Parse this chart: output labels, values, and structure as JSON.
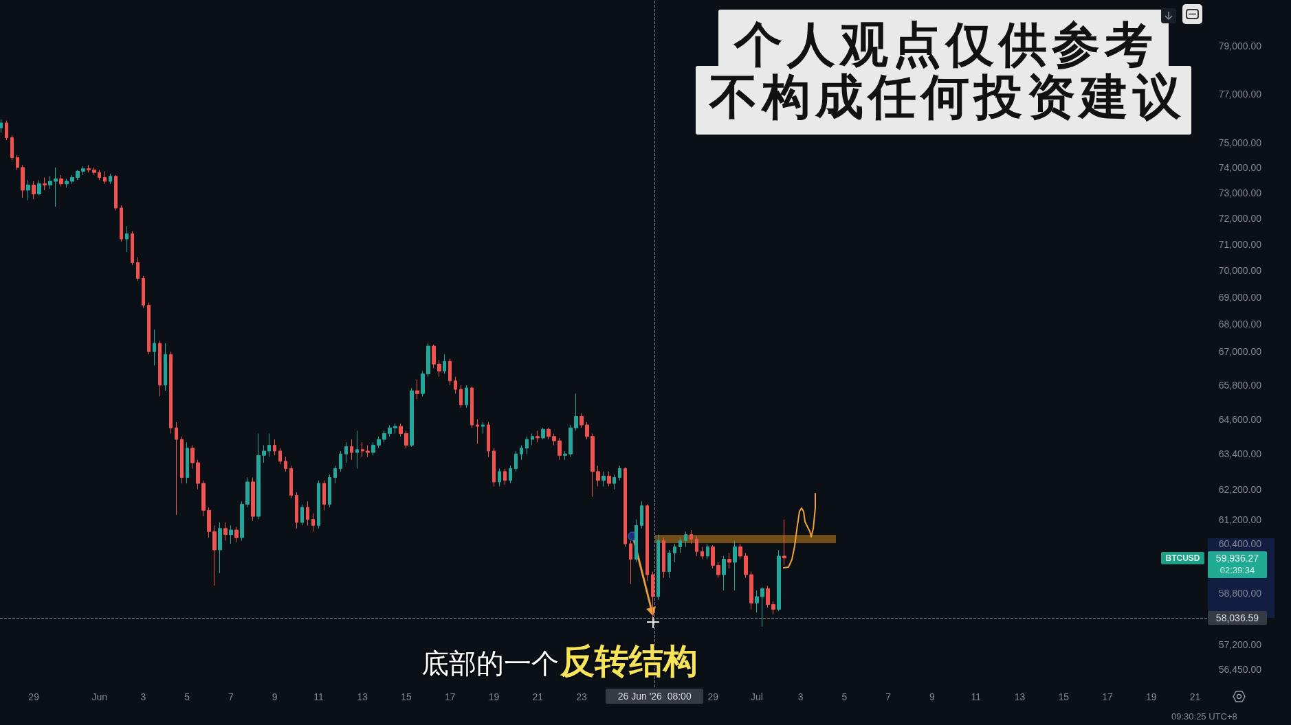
{
  "chart_data": {
    "type": "candlestick",
    "x": [
      "2026-05-27T12:00",
      "2026-05-27T18:00",
      "2026-05-28T00:00",
      "2026-05-28T06:00",
      "2026-05-28T12:00",
      "2026-05-28T18:00",
      "2026-05-29T00:00",
      "2026-05-29T06:00",
      "2026-05-29T12:00",
      "2026-05-29T18:00",
      "2026-05-30T00:00",
      "2026-05-30T06:00",
      "2026-05-30T12:00",
      "2026-05-30T18:00",
      "2026-05-31T00:00",
      "2026-05-31T06:00",
      "2026-05-31T12:00",
      "2026-05-31T18:00",
      "2026-06-01T00:00",
      "2026-06-01T06:00",
      "2026-06-01T12:00",
      "2026-06-01T18:00",
      "2026-06-02T00:00",
      "2026-06-02T06:00",
      "2026-06-02T12:00",
      "2026-06-02T18:00",
      "2026-06-03T00:00",
      "2026-06-03T06:00",
      "2026-06-03T12:00",
      "2026-06-03T18:00",
      "2026-06-04T00:00",
      "2026-06-04T06:00",
      "2026-06-04T12:00",
      "2026-06-04T18:00",
      "2026-06-05T00:00",
      "2026-06-05T06:00",
      "2026-06-05T12:00",
      "2026-06-05T18:00",
      "2026-06-06T00:00",
      "2026-06-06T06:00",
      "2026-06-06T12:00",
      "2026-06-06T18:00",
      "2026-06-07T00:00",
      "2026-06-07T06:00",
      "2026-06-07T12:00",
      "2026-06-07T18:00",
      "2026-06-08T00:00",
      "2026-06-08T06:00",
      "2026-06-08T12:00",
      "2026-06-08T18:00",
      "2026-06-09T00:00",
      "2026-06-09T06:00",
      "2026-06-09T12:00",
      "2026-06-09T18:00",
      "2026-06-10T00:00",
      "2026-06-10T06:00",
      "2026-06-10T12:00",
      "2026-06-10T18:00",
      "2026-06-11T00:00",
      "2026-06-11T06:00",
      "2026-06-11T12:00",
      "2026-06-11T18:00",
      "2026-06-12T00:00",
      "2026-06-12T06:00",
      "2026-06-12T12:00",
      "2026-06-12T18:00",
      "2026-06-13T00:00",
      "2026-06-13T06:00",
      "2026-06-13T12:00",
      "2026-06-13T18:00",
      "2026-06-14T00:00",
      "2026-06-14T06:00",
      "2026-06-14T12:00",
      "2026-06-14T18:00",
      "2026-06-15T00:00",
      "2026-06-15T06:00",
      "2026-06-15T12:00",
      "2026-06-15T18:00",
      "2026-06-16T00:00",
      "2026-06-16T06:00",
      "2026-06-16T12:00",
      "2026-06-16T18:00",
      "2026-06-17T00:00",
      "2026-06-17T06:00",
      "2026-06-17T12:00",
      "2026-06-17T18:00",
      "2026-06-18T00:00",
      "2026-06-18T06:00",
      "2026-06-18T12:00",
      "2026-06-18T18:00",
      "2026-06-19T00:00",
      "2026-06-19T06:00",
      "2026-06-19T12:00",
      "2026-06-19T18:00",
      "2026-06-20T00:00",
      "2026-06-20T06:00",
      "2026-06-20T12:00",
      "2026-06-20T18:00",
      "2026-06-21T00:00",
      "2026-06-21T06:00",
      "2026-06-21T12:00",
      "2026-06-21T18:00",
      "2026-06-22T00:00",
      "2026-06-22T06:00",
      "2026-06-22T12:00",
      "2026-06-22T18:00",
      "2026-06-23T00:00",
      "2026-06-23T06:00",
      "2026-06-23T12:00",
      "2026-06-23T18:00",
      "2026-06-24T00:00",
      "2026-06-24T06:00",
      "2026-06-24T12:00",
      "2026-06-24T18:00",
      "2026-06-25T00:00",
      "2026-06-25T06:00",
      "2026-06-25T12:00",
      "2026-06-25T18:00",
      "2026-06-26T00:00",
      "2026-06-26T06:00",
      "2026-06-26T12:00",
      "2026-06-26T18:00",
      "2026-06-27T00:00",
      "2026-06-27T06:00",
      "2026-06-27T12:00",
      "2026-06-27T18:00",
      "2026-06-28T00:00",
      "2026-06-28T06:00",
      "2026-06-28T12:00",
      "2026-06-28T18:00",
      "2026-06-29T00:00",
      "2026-06-29T06:00",
      "2026-06-29T12:00",
      "2026-06-29T18:00",
      "2026-06-30T00:00",
      "2026-06-30T06:00",
      "2026-06-30T12:00",
      "2026-06-30T18:00",
      "2026-07-01T00:00",
      "2026-07-01T06:00",
      "2026-07-01T12:00",
      "2026-07-01T18:00",
      "2026-07-02T00:00",
      "2026-07-02T06:00"
    ],
    "ohlc": [
      [
        75600,
        75950,
        75400,
        75800
      ],
      [
        75800,
        75900,
        75100,
        75200
      ],
      [
        75200,
        75300,
        74300,
        74400
      ],
      [
        74400,
        74500,
        73900,
        74000
      ],
      [
        74000,
        74100,
        72800,
        73100
      ],
      [
        73100,
        73500,
        72700,
        73300
      ],
      [
        73300,
        73450,
        72750,
        72950
      ],
      [
        72950,
        73500,
        72900,
        73350
      ],
      [
        73350,
        73600,
        73100,
        73300
      ],
      [
        73300,
        73650,
        73150,
        73450
      ],
      [
        73450,
        74000,
        72450,
        73550
      ],
      [
        73550,
        73700,
        73250,
        73350
      ],
      [
        73350,
        73550,
        73200,
        73450
      ],
      [
        73450,
        73700,
        73350,
        73600
      ],
      [
        73600,
        73900,
        73500,
        73850
      ],
      [
        73850,
        74050,
        73700,
        73950
      ],
      [
        73950,
        74100,
        73800,
        73900
      ],
      [
        73900,
        74000,
        73700,
        73800
      ],
      [
        73800,
        73900,
        73500,
        73600
      ],
      [
        73600,
        73850,
        73350,
        73450
      ],
      [
        73450,
        73750,
        73350,
        73650
      ],
      [
        73650,
        73700,
        72300,
        72400
      ],
      [
        72400,
        72500,
        71100,
        71200
      ],
      [
        71200,
        71700,
        70700,
        71400
      ],
      [
        71400,
        71500,
        70200,
        70300
      ],
      [
        70300,
        70500,
        69600,
        69700
      ],
      [
        69700,
        69800,
        68600,
        68700
      ],
      [
        68700,
        68800,
        66900,
        67000
      ],
      [
        67000,
        67800,
        66500,
        67300
      ],
      [
        67300,
        67400,
        65400,
        65800
      ],
      [
        65800,
        67300,
        65600,
        66900
      ],
      [
        66900,
        67000,
        64100,
        64300
      ],
      [
        64300,
        64500,
        61350,
        63900
      ],
      [
        63900,
        64000,
        62400,
        62600
      ],
      [
        62600,
        63800,
        62400,
        63600
      ],
      [
        63600,
        63700,
        62900,
        63100
      ],
      [
        63100,
        63200,
        62200,
        62400
      ],
      [
        62400,
        62500,
        61300,
        61500
      ],
      [
        61500,
        61600,
        60600,
        60800
      ],
      [
        60800,
        61000,
        59050,
        60200
      ],
      [
        60200,
        61100,
        59450,
        60900
      ],
      [
        60900,
        61100,
        60500,
        60700
      ],
      [
        60700,
        61000,
        60400,
        60850
      ],
      [
        60850,
        60950,
        60450,
        60600
      ],
      [
        60600,
        61800,
        60500,
        61700
      ],
      [
        61700,
        62600,
        61600,
        62450
      ],
      [
        62450,
        62600,
        61150,
        61300
      ],
      [
        61300,
        64100,
        61200,
        63350
      ],
      [
        63350,
        63700,
        63100,
        63500
      ],
      [
        63500,
        64100,
        63300,
        63700
      ],
      [
        63700,
        63900,
        63350,
        63500
      ],
      [
        63500,
        63600,
        63050,
        63150
      ],
      [
        63150,
        63300,
        62800,
        62900
      ],
      [
        62900,
        63000,
        61900,
        62000
      ],
      [
        62000,
        62100,
        60900,
        61100
      ],
      [
        61100,
        61700,
        61000,
        61600
      ],
      [
        61600,
        61800,
        61000,
        61200
      ],
      [
        61200,
        61400,
        60800,
        61000
      ],
      [
        61000,
        62500,
        60900,
        62400
      ],
      [
        62400,
        62500,
        61500,
        61700
      ],
      [
        61700,
        62700,
        61600,
        62600
      ],
      [
        62600,
        63000,
        62400,
        62900
      ],
      [
        62900,
        63500,
        62800,
        63400
      ],
      [
        63400,
        63800,
        63100,
        63650
      ],
      [
        63650,
        63900,
        63200,
        63450
      ],
      [
        63450,
        64200,
        62900,
        63550
      ],
      [
        63550,
        63800,
        63300,
        63500
      ],
      [
        63500,
        63700,
        63300,
        63450
      ],
      [
        63450,
        63800,
        63350,
        63700
      ],
      [
        63700,
        64000,
        63600,
        63900
      ],
      [
        63900,
        64200,
        63800,
        64100
      ],
      [
        64100,
        64400,
        64000,
        64300
      ],
      [
        64300,
        64450,
        64100,
        64350
      ],
      [
        64350,
        64450,
        64000,
        64100
      ],
      [
        64100,
        64200,
        63600,
        63700
      ],
      [
        63700,
        65700,
        63650,
        65600
      ],
      [
        65600,
        66000,
        65300,
        65500
      ],
      [
        65500,
        66300,
        65400,
        66200
      ],
      [
        66200,
        67300,
        66100,
        67200
      ],
      [
        67200,
        67250,
        66400,
        66550
      ],
      [
        66550,
        66700,
        66100,
        66300
      ],
      [
        66300,
        66900,
        66200,
        66650
      ],
      [
        66650,
        66750,
        65800,
        65950
      ],
      [
        65950,
        66100,
        65500,
        65650
      ],
      [
        65650,
        65800,
        65000,
        65100
      ],
      [
        65100,
        65800,
        65000,
        65700
      ],
      [
        65700,
        65750,
        64300,
        64400
      ],
      [
        64400,
        64600,
        63750,
        64350
      ],
      [
        64350,
        64500,
        64100,
        64400
      ],
      [
        64400,
        64500,
        63300,
        63500
      ],
      [
        63500,
        63600,
        62300,
        62450
      ],
      [
        62450,
        62900,
        62300,
        62800
      ],
      [
        62800,
        62900,
        62350,
        62500
      ],
      [
        62500,
        63000,
        62400,
        62900
      ],
      [
        62900,
        63500,
        62800,
        63400
      ],
      [
        63400,
        63700,
        63200,
        63600
      ],
      [
        63600,
        64000,
        63400,
        63900
      ],
      [
        63900,
        64100,
        63700,
        64000
      ],
      [
        64000,
        64200,
        63800,
        63950
      ],
      [
        63950,
        64300,
        63900,
        64250
      ],
      [
        64250,
        64300,
        63900,
        64000
      ],
      [
        64000,
        64100,
        63700,
        63850
      ],
      [
        63850,
        63950,
        63200,
        63350
      ],
      [
        63350,
        63500,
        63200,
        63400
      ],
      [
        63400,
        64400,
        63300,
        64300
      ],
      [
        64300,
        65500,
        64200,
        64700
      ],
      [
        64700,
        64800,
        64300,
        64400
      ],
      [
        64400,
        64500,
        63900,
        64000
      ],
      [
        64000,
        64100,
        61950,
        62800
      ],
      [
        62800,
        63000,
        62300,
        62500
      ],
      [
        62500,
        62800,
        62300,
        62650
      ],
      [
        62650,
        62800,
        62300,
        62400
      ],
      [
        62400,
        62700,
        62200,
        62600
      ],
      [
        62600,
        63000,
        62500,
        62900
      ],
      [
        62900,
        62950,
        60300,
        60400
      ],
      [
        60400,
        60500,
        59100,
        59900
      ],
      [
        59900,
        61200,
        59800,
        61000
      ],
      [
        61000,
        61800,
        60900,
        61650
      ],
      [
        61650,
        61700,
        59200,
        59400
      ],
      [
        59400,
        59500,
        58040,
        58700
      ],
      [
        58700,
        60700,
        58600,
        60500
      ],
      [
        60500,
        60600,
        59300,
        59500
      ],
      [
        59500,
        60200,
        59300,
        60100
      ],
      [
        60100,
        60400,
        59800,
        60300
      ],
      [
        60300,
        60600,
        60100,
        60500
      ],
      [
        60500,
        60800,
        60300,
        60700
      ],
      [
        60700,
        60850,
        60400,
        60550
      ],
      [
        60550,
        60650,
        60000,
        60150
      ],
      [
        60150,
        60300,
        59900,
        60000
      ],
      [
        60000,
        60400,
        59900,
        60300
      ],
      [
        60300,
        60350,
        59600,
        59700
      ],
      [
        59700,
        59800,
        59300,
        59400
      ],
      [
        59400,
        60000,
        58900,
        59900
      ],
      [
        59900,
        60100,
        59600,
        59800
      ],
      [
        59800,
        60500,
        58900,
        60300
      ],
      [
        60300,
        60400,
        59900,
        60000
      ],
      [
        60000,
        60100,
        59300,
        59400
      ],
      [
        59400,
        59500,
        58300,
        58500
      ],
      [
        58500,
        58900,
        58200,
        58700
      ],
      [
        58700,
        59000,
        57760,
        58950
      ],
      [
        58950,
        59050,
        58350,
        58450
      ],
      [
        58450,
        58550,
        58150,
        58300
      ],
      [
        58300,
        60200,
        58250,
        60000
      ],
      [
        60000,
        61200,
        59700,
        59936.27
      ]
    ],
    "colors": [
      "#26a69a",
      "#ef5350",
      "#ef5350",
      "#ef5350",
      "#ef5350",
      "#26a69a",
      "#ef5350",
      "#26a69a",
      "#ef5350",
      "#26a69a",
      "#26a69a",
      "#ef5350",
      "#26a69a",
      "#26a69a",
      "#26a69a",
      "#26a69a",
      "#ef5350",
      "#ef5350",
      "#ef5350",
      "#ef5350",
      "#26a69a",
      "#ef5350",
      "#ef5350",
      "#26a69a",
      "#ef5350",
      "#ef5350",
      "#ef5350",
      "#ef5350",
      "#26a69a",
      "#ef5350",
      "#26a69a",
      "#ef5350",
      "#ef5350",
      "#ef5350",
      "#26a69a",
      "#ef5350",
      "#ef5350",
      "#ef5350",
      "#ef5350",
      "#ef5350",
      "#26a69a",
      "#ef5350",
      "#26a69a",
      "#ef5350",
      "#26a69a",
      "#26a69a",
      "#ef5350",
      "#26a69a",
      "#26a69a",
      "#26a69a",
      "#ef5350",
      "#ef5350",
      "#ef5350",
      "#ef5350",
      "#ef5350",
      "#26a69a",
      "#ef5350",
      "#ef5350",
      "#26a69a",
      "#ef5350",
      "#26a69a",
      "#26a69a",
      "#26a69a",
      "#26a69a",
      "#ef5350",
      "#26a69a",
      "#ef5350",
      "#ef5350",
      "#26a69a",
      "#26a69a",
      "#26a69a",
      "#26a69a",
      "#26a69a",
      "#ef5350",
      "#ef5350",
      "#26a69a",
      "#ef5350",
      "#26a69a",
      "#26a69a",
      "#ef5350",
      "#ef5350",
      "#26a69a",
      "#ef5350",
      "#ef5350",
      "#ef5350",
      "#26a69a",
      "#ef5350",
      "#ef5350",
      "#26a69a",
      "#ef5350",
      "#ef5350",
      "#26a69a",
      "#ef5350",
      "#26a69a",
      "#26a69a",
      "#26a69a",
      "#26a69a",
      "#26a69a",
      "#ef5350",
      "#26a69a",
      "#ef5350",
      "#ef5350",
      "#ef5350",
      "#26a69a",
      "#26a69a",
      "#26a69a",
      "#ef5350",
      "#ef5350",
      "#ef5350",
      "#ef5350",
      "#26a69a",
      "#ef5350",
      "#26a69a",
      "#26a69a",
      "#ef5350",
      "#ef5350",
      "#26a69a",
      "#26a69a",
      "#ef5350",
      "#ef5350",
      "#26a69a",
      "#ef5350",
      "#26a69a",
      "#26a69a",
      "#26a69a",
      "#26a69a",
      "#ef5350",
      "#ef5350",
      "#ef5350",
      "#26a69a",
      "#ef5350",
      "#ef5350",
      "#26a69a",
      "#ef5350",
      "#26a69a",
      "#ef5350",
      "#ef5350",
      "#ef5350",
      "#26a69a",
      "#26a69a",
      "#ef5350",
      "#ef5350",
      "#26a69a",
      "#ef5350"
    ],
    "xlim": [
      "2026-05-27T11:00",
      "2026-07-21T14:00"
    ],
    "xticks": [
      {
        "value": "2026-05-29",
        "label": "29"
      },
      {
        "value": "2026-06-01",
        "label": "Jun"
      },
      {
        "value": "2026-06-03",
        "label": "3"
      },
      {
        "value": "2026-06-05",
        "label": "5"
      },
      {
        "value": "2026-06-07",
        "label": "7"
      },
      {
        "value": "2026-06-09",
        "label": "9"
      },
      {
        "value": "2026-06-11",
        "label": "11"
      },
      {
        "value": "2026-06-13",
        "label": "13"
      },
      {
        "value": "2026-06-15",
        "label": "15"
      },
      {
        "value": "2026-06-17",
        "label": "17"
      },
      {
        "value": "2026-06-19",
        "label": "19"
      },
      {
        "value": "2026-06-21",
        "label": "21"
      },
      {
        "value": "2026-06-23",
        "label": "23"
      },
      {
        "value": "2026-06-29",
        "label": "29"
      },
      {
        "value": "2026-07-01",
        "label": "Jul"
      },
      {
        "value": "2026-07-03",
        "label": "3"
      },
      {
        "value": "2026-07-05",
        "label": "5"
      },
      {
        "value": "2026-07-07",
        "label": "7"
      },
      {
        "value": "2026-07-09",
        "label": "9"
      },
      {
        "value": "2026-07-11",
        "label": "11"
      },
      {
        "value": "2026-07-13",
        "label": "13"
      },
      {
        "value": "2026-07-15",
        "label": "15"
      },
      {
        "value": "2026-07-17",
        "label": "17"
      },
      {
        "value": "2026-07-19",
        "label": "19"
      },
      {
        "value": "2026-07-21",
        "label": "21"
      }
    ],
    "ylim": [
      55900,
      81000
    ],
    "yticks": [
      {
        "value": 79000,
        "label": "79,000.00"
      },
      {
        "value": 77000,
        "label": "77,000.00"
      },
      {
        "value": 75000,
        "label": "75,000.00"
      },
      {
        "value": 74000,
        "label": "74,000.00"
      },
      {
        "value": 73000,
        "label": "73,000.00"
      },
      {
        "value": 72000,
        "label": "72,000.00"
      },
      {
        "value": 71000,
        "label": "71,000.00"
      },
      {
        "value": 70000,
        "label": "70,000.00"
      },
      {
        "value": 69000,
        "label": "69,000.00"
      },
      {
        "value": 68000,
        "label": "68,000.00"
      },
      {
        "value": 67000,
        "label": "67,000.00"
      },
      {
        "value": 65800,
        "label": "65,800.00"
      },
      {
        "value": 64600,
        "label": "64,600.00"
      },
      {
        "value": 63400,
        "label": "63,400.00"
      },
      {
        "value": 62200,
        "label": "62,200.00"
      },
      {
        "value": 61200,
        "label": "61,200.00"
      },
      {
        "value": 60400,
        "label": "60,400.00"
      },
      {
        "value": 58800,
        "label": "58,800.00"
      },
      {
        "value": 57200,
        "label": "57,200.00"
      },
      {
        "value": 56450,
        "label": "56,450.00"
      }
    ],
    "log": true,
    "ref_lines": [
      {
        "axis": "x",
        "value": "2026-06-26T08:00",
        "label": "26 Jun '26  08:00",
        "line_style": "dashed"
      },
      {
        "axis": "y",
        "value": 58036.59,
        "label": "58,036.59",
        "line_style": "dashed"
      }
    ],
    "annotations": [
      "个人观点仅供参考",
      "不构成任何投资建议",
      "底部的一个",
      "反转结构",
      "BTCUSD",
      "59,936.27",
      "02:39:34",
      "09:30:25 UTC+8"
    ]
  }
}
